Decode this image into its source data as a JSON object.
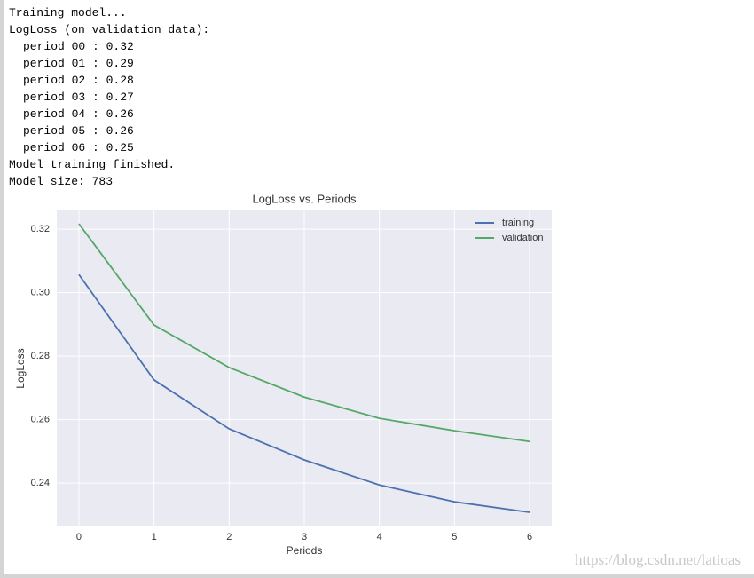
{
  "log_lines": [
    "Training model...",
    "LogLoss (on validation data):",
    "period 00 : 0.32",
    "period 01 : 0.29",
    "period 02 : 0.28",
    "period 03 : 0.27",
    "period 04 : 0.26",
    "period 05 : 0.26",
    "period 06 : 0.25",
    "Model training finished.",
    "Model size: 783"
  ],
  "chart_data": {
    "type": "line",
    "title": "LogLoss vs. Periods",
    "x_label": "Periods",
    "y_label": "LogLoss",
    "x": [
      0,
      1,
      2,
      3,
      4,
      5,
      6
    ],
    "series": [
      {
        "name": "training",
        "color": "#4c72b0",
        "values": [
          0.3057,
          0.2725,
          0.2571,
          0.2473,
          0.2394,
          0.2341,
          0.2308
        ]
      },
      {
        "name": "validation",
        "color": "#55a868",
        "values": [
          0.3217,
          0.2898,
          0.2764,
          0.2671,
          0.2604,
          0.2565,
          0.2531
        ]
      }
    ],
    "xlim": [
      -0.295,
      6.295
    ],
    "ylim": [
      0.2266,
      0.3259
    ],
    "xticks": [
      0,
      1,
      2,
      3,
      4,
      5,
      6
    ],
    "yticks": [
      0.24,
      0.26,
      0.28,
      {
        "value": 0.3,
        "label": "0.30"
      },
      0.32
    ],
    "grid": true,
    "legend": "upper right"
  },
  "watermark": "https://blog.csdn.net/latioas"
}
